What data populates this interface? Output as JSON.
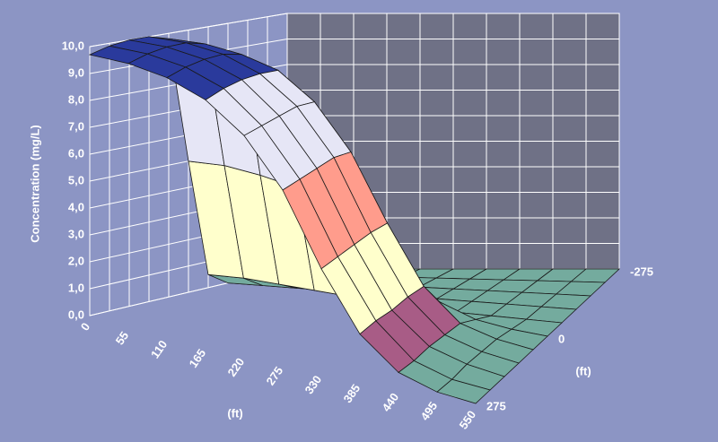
{
  "chart_data": {
    "type": "surface",
    "z_label": "Concentration  (mg/L)",
    "x_label": "(ft)",
    "depth_label": "(ft)",
    "categories": [
      "0",
      "55",
      "110",
      "165",
      "220",
      "275",
      "330",
      "385",
      "440",
      "495",
      "550"
    ],
    "depth_categories": [
      "-275",
      null,
      null,
      null,
      null,
      "0",
      null,
      null,
      null,
      null,
      "275"
    ],
    "z": [
      [
        0,
        0,
        0,
        0,
        0,
        0,
        0,
        0,
        0,
        0,
        0
      ],
      [
        0,
        0,
        0,
        0,
        0,
        0,
        0,
        0,
        0,
        0,
        0
      ],
      [
        0,
        0,
        0,
        0,
        0,
        0,
        0,
        0,
        0,
        0,
        0
      ],
      [
        0,
        0,
        0,
        0,
        0,
        0,
        0,
        0,
        0,
        0,
        0
      ],
      [
        0.5,
        0.5,
        0.4,
        0.3,
        0.2,
        0.1,
        0,
        0,
        0,
        0,
        0
      ],
      [
        5,
        5,
        4.8,
        4.5,
        4,
        3,
        1.8,
        0.8,
        0.3,
        0.1,
        0
      ],
      [
        9.8,
        9.8,
        9.6,
        9.2,
        8.2,
        6.5,
        4,
        1.8,
        0.6,
        0.2,
        0
      ],
      [
        10,
        10,
        9.8,
        9.3,
        8.3,
        6.6,
        4,
        1.8,
        0.6,
        0.2,
        0
      ],
      [
        10,
        10,
        9.8,
        9.3,
        8.2,
        6.5,
        3.9,
        1.7,
        0.6,
        0.2,
        0
      ],
      [
        9.9,
        9.9,
        9.7,
        9.2,
        8.1,
        6.4,
        3.8,
        1.7,
        0.5,
        0.1,
        0
      ],
      [
        9.7,
        9.7,
        9.5,
        9,
        8,
        6.3,
        3.7,
        1.6,
        0.5,
        0.1,
        0
      ]
    ],
    "zlim": [
      0,
      10
    ],
    "zticks": [
      {
        "value": 0,
        "label": "0,0"
      },
      {
        "value": 1,
        "label": "1,0"
      },
      {
        "value": 2,
        "label": "2,0"
      },
      {
        "value": 3,
        "label": "3,0"
      },
      {
        "value": 4,
        "label": "4,0"
      },
      {
        "value": 5,
        "label": "5,0"
      },
      {
        "value": 6,
        "label": "6,0"
      },
      {
        "value": 7,
        "label": "7,0"
      },
      {
        "value": 8,
        "label": "8,0"
      },
      {
        "value": 9,
        "label": "9,0"
      },
      {
        "value": 10,
        "label": "10,0"
      }
    ],
    "band_colors": [
      "#74ab9e",
      "#a85c86",
      "#ffffcc",
      "#ccffff",
      "#7e3585",
      "#ff9c8c",
      "#5a8ddc",
      "#e6e6f6",
      "#e6e6f6",
      "#2a3a9c"
    ],
    "grid": true
  }
}
